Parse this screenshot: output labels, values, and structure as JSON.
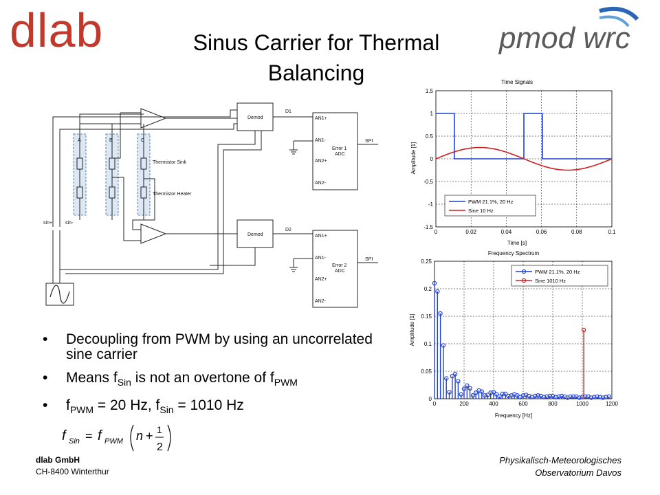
{
  "header": {
    "logo_left": "dlab",
    "logo_right": "pmod wrc",
    "title_line1": "Sinus Carrier for Thermal",
    "title_line2": "Balancing"
  },
  "schematic": {
    "sensor_labels": [
      "A",
      "B",
      "C"
    ],
    "thermistor_sink": "Thermistor Sink",
    "thermistor_heater": "Thermistor Heater",
    "demod_label": "Demod",
    "d1": "D1",
    "d2": "D2",
    "sin_plus": "sin+",
    "sin_minus": "sin-",
    "adc1_pins": [
      "AN1+",
      "AN1-",
      "AN2+",
      "AN2-"
    ],
    "adc1_name": [
      "Error 1",
      "ADC"
    ],
    "adc2_name": [
      "Error 2",
      "ADC"
    ],
    "spi": "SPI"
  },
  "plots": {
    "time": {
      "title": "Time Signals",
      "xlabel": "Time [s]",
      "ylabel": "Amplitude [1]",
      "legend": [
        "PWM 21.1%, 20 Hz",
        "Sine 10 Hz"
      ],
      "xticks": [
        "0",
        "0.02",
        "0.04",
        "0.06",
        "0.08",
        "0.1"
      ],
      "yticks": [
        "-1.5",
        "-1",
        "-0.5",
        "0",
        "0.5",
        "1",
        "1.5"
      ]
    },
    "freq": {
      "title": "Frequency Spectrum",
      "xlabel": "Frequency [Hz]",
      "ylabel": "Amplitude [1]",
      "legend": [
        "PWM 21.1%, 20 Hz",
        "Sine 1010 Hz"
      ],
      "xticks": [
        "0",
        "200",
        "400",
        "600",
        "800",
        "1000",
        "1200"
      ],
      "yticks": [
        "0",
        "0.05",
        "0.1",
        "0.15",
        "0.2",
        "0.25"
      ]
    }
  },
  "chart_data": [
    {
      "type": "line",
      "title": "Time Signals",
      "xlabel": "Time [s]",
      "ylabel": "Amplitude [1]",
      "xlim": [
        0,
        0.1
      ],
      "ylim": [
        -1.5,
        1.5
      ],
      "grid": true,
      "legend_position": "bottom-left",
      "series": [
        {
          "name": "PWM 21.1%, 20 Hz",
          "color": "#1f3fd0",
          "x": [
            0,
            0.0105,
            0.0105,
            0.05,
            0.05,
            0.0605,
            0.0605,
            0.1
          ],
          "y": [
            1,
            1,
            0,
            0,
            1,
            1,
            0,
            0
          ]
        },
        {
          "name": "Sine 10 Hz",
          "color": "#cc1f1f",
          "function": "0.25*sin(2*pi*10*t)",
          "x": [
            0,
            0.025,
            0.05,
            0.075,
            0.1
          ],
          "y": [
            0,
            0.25,
            0,
            -0.25,
            0
          ]
        }
      ]
    },
    {
      "type": "stem",
      "title": "Frequency Spectrum",
      "xlabel": "Frequency [Hz]",
      "ylabel": "Amplitude [1]",
      "xlim": [
        0,
        1200
      ],
      "ylim": [
        0,
        0.25
      ],
      "grid": true,
      "legend_position": "top-right",
      "series": [
        {
          "name": "PWM 21.1%, 20 Hz",
          "color": "#1f3fd0",
          "x": [
            0,
            20,
            40,
            60,
            80,
            100,
            120,
            140,
            160,
            180,
            200,
            220,
            240,
            260,
            280,
            300,
            320,
            340,
            360,
            380,
            400,
            420,
            440,
            460,
            480,
            500,
            520,
            540,
            560,
            580,
            600,
            620,
            640,
            660,
            680,
            700,
            720,
            740,
            760,
            780,
            800,
            820,
            840,
            860,
            880,
            900,
            920,
            940,
            960,
            980,
            1000,
            1020,
            1040,
            1060,
            1080,
            1100,
            1120,
            1140,
            1160,
            1180
          ],
          "y": [
            0.21,
            0.195,
            0.155,
            0.097,
            0.037,
            0.012,
            0.041,
            0.045,
            0.032,
            0.008,
            0.018,
            0.024,
            0.019,
            0.006,
            0.011,
            0.015,
            0.013,
            0.006,
            0.007,
            0.011,
            0.012,
            0.008,
            0.004,
            0.009,
            0.009,
            0.005,
            0.006,
            0.008,
            0.006,
            0.003,
            0.006,
            0.007,
            0.005,
            0.003,
            0.005,
            0.006,
            0.005,
            0.003,
            0.004,
            0.005,
            0.005,
            0.003,
            0.004,
            0.005,
            0.004,
            0.002,
            0.004,
            0.004,
            0.004,
            0.002,
            0.003,
            0.004,
            0.004,
            0.002,
            0.003,
            0.004,
            0.003,
            0.002,
            0.003,
            0.004
          ]
        },
        {
          "name": "Sine 1010 Hz",
          "color": "#cc1f1f",
          "x": [
            1010
          ],
          "y": [
            0.125
          ]
        }
      ]
    }
  ],
  "bullets": [
    {
      "parts": [
        {
          "t": "Decoupling from PWM by using an uncorrelated sine carrier"
        }
      ]
    },
    {
      "parts": [
        {
          "t": "Means f"
        },
        {
          "sub": "Sin"
        },
        {
          "t": " is not an overtone of f"
        },
        {
          "sub": "PWM"
        }
      ]
    },
    {
      "parts": [
        {
          "t": "f"
        },
        {
          "sub": "PWM"
        },
        {
          "t": " = 20 Hz, f"
        },
        {
          "sub": "Sin"
        },
        {
          "t": " = 1010 Hz"
        }
      ]
    }
  ],
  "formula": {
    "lhs": "f",
    "lhs_sub": "Sin",
    "eq": "=",
    "rhs": "f",
    "rhs_sub": "PWM",
    "n": "n",
    "plus": "+",
    "num": "1",
    "den": "2"
  },
  "footer": {
    "company": "dlab GmbH",
    "address": "CH-8400  Winterthur",
    "institute_line1": "Physikalisch-Meteorologisches",
    "institute_line2": "Observatorium Davos"
  }
}
